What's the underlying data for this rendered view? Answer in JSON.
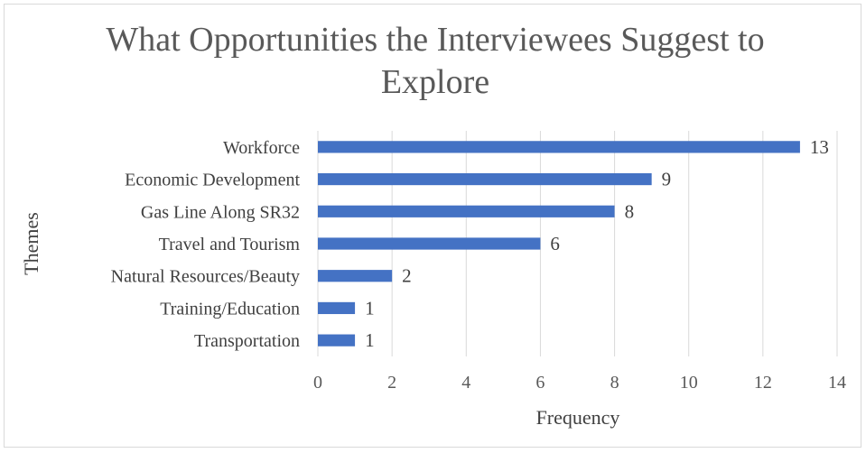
{
  "chart_data": {
    "type": "bar",
    "orientation": "horizontal",
    "title_lines": [
      "What Opportunities the Interviewees Suggest to",
      "Explore"
    ],
    "categories": [
      "Workforce",
      "Economic Development",
      "Gas Line Along SR32",
      "Travel and Tourism",
      "Natural Resources/Beauty",
      "Training/Education",
      "Transportation"
    ],
    "values": [
      13,
      9,
      8,
      6,
      2,
      1,
      1
    ],
    "xlabel": "Frequency",
    "ylabel": "Themes",
    "xlim": [
      0,
      14
    ],
    "xticks": [
      "0",
      "2",
      "4",
      "6",
      "8",
      "10",
      "12",
      "14"
    ],
    "bar_color": "#4472c4",
    "grid": "vertical",
    "data_labels": true
  }
}
